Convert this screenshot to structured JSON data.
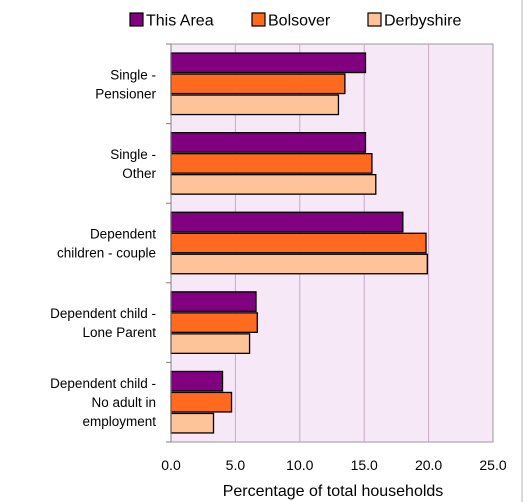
{
  "chart_data": {
    "type": "bar",
    "orientation": "horizontal",
    "title": "",
    "xlabel": "Percentage of total households",
    "ylabel": "",
    "xlim": [
      0,
      25
    ],
    "xticks": [
      "0.0",
      "5.0",
      "10.0",
      "15.0",
      "20.0",
      "25.0"
    ],
    "grid": true,
    "legend": "top",
    "categories": [
      [
        "Single -",
        "Pensioner"
      ],
      [
        "Single -",
        "Other"
      ],
      [
        "Dependent",
        "children - couple"
      ],
      [
        "Dependent child -",
        "Lone Parent"
      ],
      [
        "Dependent child -",
        "No adult in",
        "employment"
      ]
    ],
    "series": [
      {
        "name": "This Area",
        "color": "#800080",
        "values": [
          15.1,
          15.1,
          18.0,
          6.6,
          4.0
        ]
      },
      {
        "name": "Bolsover",
        "color": "#FF6A1F",
        "values": [
          13.5,
          15.6,
          19.8,
          6.7,
          4.7
        ]
      },
      {
        "name": "Derbyshire",
        "color": "#FFC299",
        "values": [
          13.0,
          15.9,
          19.9,
          6.1,
          3.3
        ]
      }
    ],
    "plot_background": "#F6E8F6",
    "grid_color": "#C9A8C9"
  }
}
